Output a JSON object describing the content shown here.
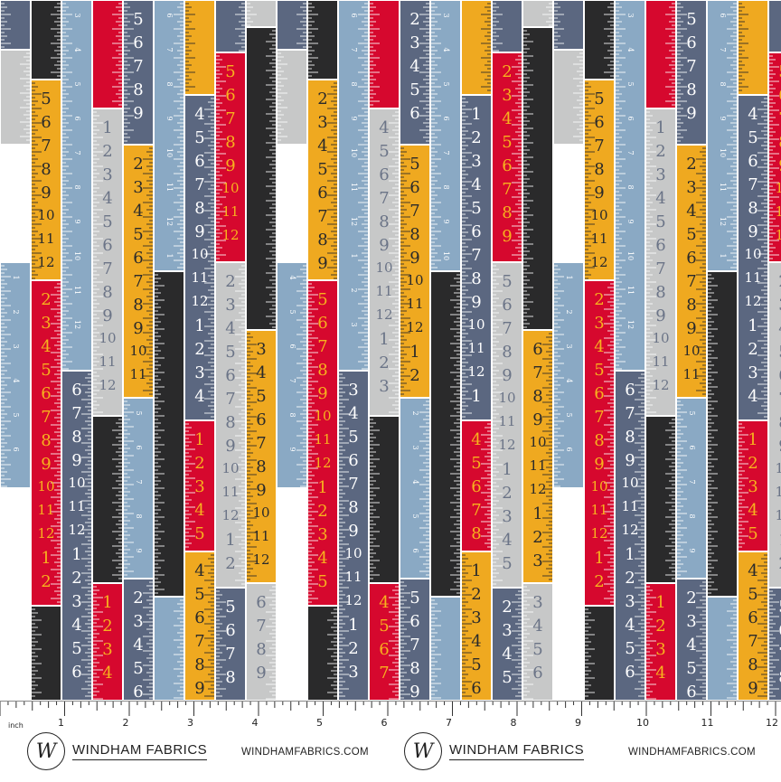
{
  "palette": {
    "red": "#d6082e",
    "yellow": "#efa920",
    "lightblue": "#8aa9c4",
    "slate": "#5b6780",
    "black": "#2a2a2b",
    "gray": "#c7c8c8"
  },
  "ruler_numbers": [
    "1",
    "2",
    "3",
    "4",
    "5",
    "6",
    "7",
    "8",
    "9",
    "10",
    "11",
    "12"
  ],
  "ruler_unit": "inch",
  "brand": {
    "name": "WINDHAM FABRICS",
    "website": "WINDHAMFABRICS.COM",
    "logo_letter": "W"
  },
  "pattern_columns": [
    {
      "segments": [
        [
          "slate",
          0,
          55
        ],
        [
          "gray",
          55,
          160
        ],
        [
          "lightblue",
          290,
          540
        ]
      ]
    },
    {
      "segments": [
        [
          "black",
          0,
          88
        ],
        [
          "yellow",
          88,
          310
        ],
        [
          "red",
          310,
          670
        ],
        [
          "black",
          670,
          775
        ]
      ]
    },
    {
      "segments": [
        [
          "lightblue",
          0,
          410
        ],
        [
          "slate",
          410,
          775
        ]
      ]
    },
    {
      "segments": [
        [
          "red",
          0,
          120
        ],
        [
          "gray",
          120,
          460
        ],
        [
          "black",
          460,
          645
        ],
        [
          "red",
          645,
          775
        ]
      ]
    },
    {
      "segments": [
        [
          "slate",
          0,
          160
        ],
        [
          "yellow",
          160,
          440
        ],
        [
          "lightblue",
          440,
          640
        ],
        [
          "slate",
          640,
          775
        ]
      ]
    },
    {
      "segments": [
        [
          "lightblue",
          0,
          300
        ],
        [
          "black",
          300,
          660
        ],
        [
          "lightblue",
          660,
          775
        ]
      ]
    },
    {
      "segments": [
        [
          "yellow",
          0,
          105
        ],
        [
          "slate",
          105,
          465
        ],
        [
          "red",
          465,
          610
        ],
        [
          "yellow",
          610,
          775
        ]
      ]
    },
    {
      "segments": [
        [
          "slate",
          0,
          58
        ],
        [
          "red",
          58,
          290
        ],
        [
          "gray",
          290,
          650
        ],
        [
          "slate",
          650,
          775
        ]
      ]
    },
    {
      "segments": [
        [
          "gray",
          0,
          30
        ],
        [
          "black",
          30,
          365
        ],
        [
          "yellow",
          365,
          645
        ],
        [
          "gray",
          645,
          775
        ]
      ]
    }
  ]
}
